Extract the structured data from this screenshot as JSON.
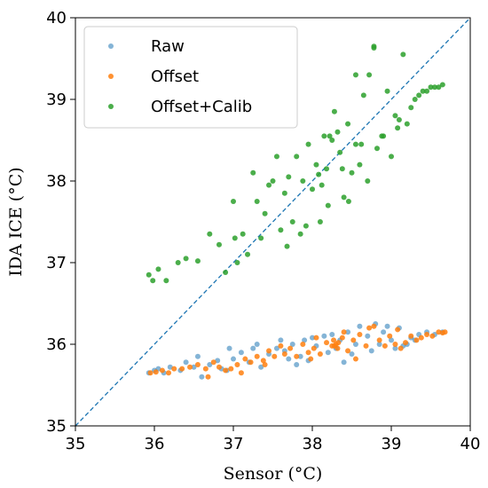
{
  "chart_data": {
    "type": "scatter",
    "title": "",
    "xlabel": "Sensor (°C)",
    "ylabel": "IDA ICE (°C)",
    "xlim": [
      35,
      40
    ],
    "ylim": [
      35,
      40
    ],
    "xticks": [
      35,
      36,
      37,
      38,
      39,
      40
    ],
    "yticks": [
      35,
      36,
      37,
      38,
      39,
      40
    ],
    "grid": false,
    "legend_position": "top-left",
    "reference_line": {
      "style": "dashed",
      "color": "#1f77b4",
      "from": [
        35,
        35
      ],
      "to": [
        40,
        40
      ]
    },
    "series": [
      {
        "name": "Raw",
        "color": "#1f77b4",
        "points": [
          [
            35.93,
            35.65
          ],
          [
            36.0,
            35.68
          ],
          [
            36.05,
            35.7
          ],
          [
            36.12,
            35.65
          ],
          [
            36.2,
            35.72
          ],
          [
            36.33,
            35.68
          ],
          [
            36.4,
            35.78
          ],
          [
            36.5,
            35.72
          ],
          [
            36.55,
            35.85
          ],
          [
            36.7,
            35.75
          ],
          [
            36.8,
            35.8
          ],
          [
            36.85,
            35.7
          ],
          [
            36.92,
            35.68
          ],
          [
            37.0,
            35.82
          ],
          [
            37.1,
            35.9
          ],
          [
            37.2,
            35.78
          ],
          [
            37.25,
            35.95
          ],
          [
            37.35,
            35.72
          ],
          [
            37.45,
            35.88
          ],
          [
            37.55,
            35.95
          ],
          [
            37.6,
            36.05
          ],
          [
            37.7,
            35.82
          ],
          [
            37.75,
            36.0
          ],
          [
            37.85,
            35.85
          ],
          [
            37.9,
            36.05
          ],
          [
            37.95,
            35.8
          ],
          [
            38.05,
            35.98
          ],
          [
            38.15,
            36.1
          ],
          [
            38.2,
            35.9
          ],
          [
            38.25,
            36.12
          ],
          [
            38.3,
            35.95
          ],
          [
            38.35,
            36.05
          ],
          [
            38.45,
            36.15
          ],
          [
            38.5,
            35.88
          ],
          [
            38.55,
            36.0
          ],
          [
            38.6,
            36.22
          ],
          [
            38.7,
            36.1
          ],
          [
            38.8,
            36.25
          ],
          [
            38.85,
            36.0
          ],
          [
            38.9,
            36.15
          ],
          [
            38.95,
            36.22
          ],
          [
            39.0,
            36.05
          ],
          [
            39.05,
            35.95
          ],
          [
            39.1,
            36.2
          ],
          [
            39.2,
            36.0
          ],
          [
            39.25,
            36.08
          ],
          [
            39.3,
            36.05
          ],
          [
            39.35,
            36.12
          ],
          [
            39.45,
            36.15
          ],
          [
            39.55,
            36.12
          ],
          [
            39.65,
            36.15
          ],
          [
            36.95,
            35.95
          ],
          [
            37.3,
            36.0
          ],
          [
            37.65,
            35.92
          ],
          [
            38.0,
            36.08
          ],
          [
            38.4,
            35.78
          ],
          [
            38.75,
            35.92
          ],
          [
            39.15,
            35.98
          ],
          [
            37.8,
            35.75
          ],
          [
            36.6,
            35.6
          ]
        ]
      },
      {
        "name": "Offset",
        "color": "#ff7f0e",
        "points": [
          [
            35.95,
            35.65
          ],
          [
            36.02,
            35.66
          ],
          [
            36.1,
            35.68
          ],
          [
            36.18,
            35.65
          ],
          [
            36.25,
            35.7
          ],
          [
            36.35,
            35.7
          ],
          [
            36.45,
            35.72
          ],
          [
            36.55,
            35.75
          ],
          [
            36.65,
            35.7
          ],
          [
            36.75,
            35.78
          ],
          [
            36.82,
            35.72
          ],
          [
            36.9,
            35.68
          ],
          [
            36.97,
            35.7
          ],
          [
            37.05,
            35.75
          ],
          [
            37.15,
            35.82
          ],
          [
            37.22,
            35.78
          ],
          [
            37.3,
            35.85
          ],
          [
            37.38,
            35.8
          ],
          [
            37.45,
            35.92
          ],
          [
            37.52,
            35.85
          ],
          [
            37.6,
            35.98
          ],
          [
            37.65,
            35.88
          ],
          [
            37.72,
            35.95
          ],
          [
            37.8,
            35.85
          ],
          [
            37.88,
            36.0
          ],
          [
            37.95,
            35.9
          ],
          [
            38.02,
            35.95
          ],
          [
            38.1,
            35.88
          ],
          [
            38.18,
            36.02
          ],
          [
            38.25,
            35.98
          ],
          [
            38.27,
            36.05
          ],
          [
            38.3,
            36.0
          ],
          [
            38.32,
            35.95
          ],
          [
            38.38,
            36.08
          ],
          [
            38.45,
            35.92
          ],
          [
            38.52,
            36.05
          ],
          [
            38.6,
            36.12
          ],
          [
            38.68,
            35.98
          ],
          [
            38.72,
            36.2
          ],
          [
            38.78,
            36.22
          ],
          [
            38.85,
            36.05
          ],
          [
            38.92,
            35.98
          ],
          [
            38.98,
            36.1
          ],
          [
            39.05,
            36.0
          ],
          [
            39.12,
            35.95
          ],
          [
            39.18,
            36.02
          ],
          [
            39.25,
            36.1
          ],
          [
            39.32,
            36.05
          ],
          [
            39.38,
            36.08
          ],
          [
            39.45,
            36.12
          ],
          [
            39.52,
            36.1
          ],
          [
            39.6,
            36.15
          ],
          [
            39.65,
            36.14
          ],
          [
            39.68,
            36.15
          ],
          [
            37.4,
            35.75
          ],
          [
            37.98,
            35.82
          ],
          [
            38.4,
            36.15
          ],
          [
            38.55,
            35.82
          ],
          [
            39.08,
            36.18
          ],
          [
            37.1,
            35.65
          ],
          [
            38.05,
            36.08
          ],
          [
            38.28,
            35.98
          ],
          [
            38.33,
            36.02
          ],
          [
            36.68,
            35.6
          ]
        ]
      },
      {
        "name": "Offset+Calib",
        "color": "#2ca02c",
        "points": [
          [
            35.93,
            36.85
          ],
          [
            35.98,
            36.78
          ],
          [
            36.05,
            36.92
          ],
          [
            36.15,
            36.78
          ],
          [
            36.3,
            37.0
          ],
          [
            36.4,
            37.05
          ],
          [
            36.55,
            37.02
          ],
          [
            36.7,
            37.35
          ],
          [
            36.82,
            37.22
          ],
          [
            36.9,
            36.88
          ],
          [
            37.0,
            37.75
          ],
          [
            37.05,
            37.0
          ],
          [
            37.12,
            37.35
          ],
          [
            37.18,
            37.1
          ],
          [
            37.25,
            38.1
          ],
          [
            37.35,
            37.3
          ],
          [
            37.4,
            37.6
          ],
          [
            37.45,
            37.95
          ],
          [
            37.5,
            38.0
          ],
          [
            37.55,
            38.3
          ],
          [
            37.6,
            37.4
          ],
          [
            37.65,
            37.85
          ],
          [
            37.7,
            38.05
          ],
          [
            37.75,
            37.5
          ],
          [
            37.8,
            38.3
          ],
          [
            37.85,
            37.35
          ],
          [
            37.88,
            38.0
          ],
          [
            37.92,
            37.45
          ],
          [
            37.95,
            38.45
          ],
          [
            38.0,
            37.9
          ],
          [
            38.05,
            38.2
          ],
          [
            38.1,
            37.5
          ],
          [
            38.15,
            38.55
          ],
          [
            38.18,
            38.15
          ],
          [
            38.2,
            37.7
          ],
          [
            38.25,
            38.5
          ],
          [
            38.28,
            38.85
          ],
          [
            38.32,
            38.6
          ],
          [
            38.35,
            38.35
          ],
          [
            38.4,
            37.8
          ],
          [
            38.45,
            38.7
          ],
          [
            38.5,
            38.1
          ],
          [
            38.55,
            38.45
          ],
          [
            38.6,
            38.2
          ],
          [
            38.65,
            39.05
          ],
          [
            38.7,
            38.0
          ],
          [
            38.72,
            39.3
          ],
          [
            38.78,
            39.65
          ],
          [
            38.82,
            38.4
          ],
          [
            38.9,
            38.55
          ],
          [
            38.95,
            39.1
          ],
          [
            39.0,
            38.3
          ],
          [
            39.05,
            38.8
          ],
          [
            39.08,
            38.65
          ],
          [
            39.15,
            39.55
          ],
          [
            39.2,
            38.7
          ],
          [
            39.25,
            38.9
          ],
          [
            39.3,
            39.0
          ],
          [
            39.35,
            39.05
          ],
          [
            39.4,
            39.1
          ],
          [
            39.45,
            39.1
          ],
          [
            39.5,
            39.15
          ],
          [
            39.55,
            39.15
          ],
          [
            39.6,
            39.15
          ],
          [
            39.65,
            39.18
          ],
          [
            37.3,
            37.75
          ],
          [
            37.68,
            37.2
          ],
          [
            38.08,
            38.08
          ],
          [
            38.38,
            38.15
          ],
          [
            38.62,
            38.45
          ],
          [
            38.12,
            37.95
          ],
          [
            38.55,
            39.3
          ],
          [
            38.78,
            39.63
          ],
          [
            38.88,
            38.55
          ],
          [
            39.1,
            38.75
          ],
          [
            37.02,
            37.3
          ],
          [
            38.22,
            38.55
          ],
          [
            38.46,
            37.75
          ]
        ]
      }
    ]
  }
}
